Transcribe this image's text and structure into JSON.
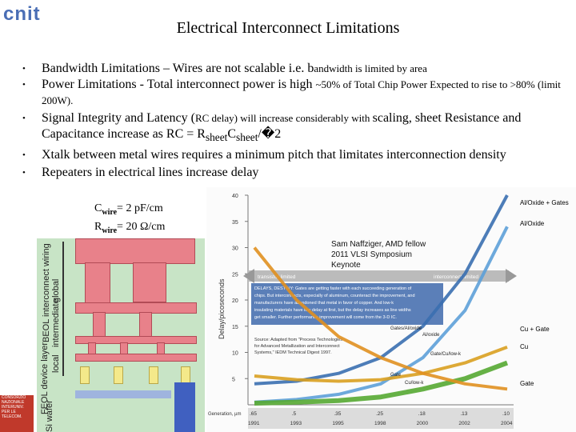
{
  "logo_text": "cnit",
  "title": "Electrical Interconnect Limitations",
  "bullets": [
    {
      "main": "Bandwidth Limitations – Wires are not scalable i.e. b",
      "small": "andwidth is limited by area"
    },
    {
      "main": "Power Limitations - Total interconnect power is high ",
      "small": "~50% of Total Chip Power Expected to rise to >80%  (limit 200W)."
    },
    {
      "main_a": "Signal Integrity and Latency (",
      "small": "RC delay) will increase considerably with ",
      "main_b": "scaling, sheet Resistance and Capacitance increase as RC = R",
      "sub1": "sheet",
      "mid": "C",
      "sub2": "sheet",
      "tail": "/�2"
    },
    {
      "main": "Xtalk between metal wires requires a minimum pitch that limitates interconnection density"
    },
    {
      "main": "Repeaters in electrical lines increase delay"
    }
  ],
  "cwire": {
    "c_prefix": "C",
    "c_sub": "wire",
    "c_val": "= 2 pF/cm",
    "r_prefix": "R",
    "r_sub": "wire",
    "r_val": "= 20 Ω/cm"
  },
  "xsec_labels": {
    "beol_wiring": "BEOL interconnect wiring",
    "global": "global",
    "intermediate": "intermediate",
    "local": "local",
    "feol": "FEOL device layer",
    "si": "Si wafer"
  },
  "corner_logo": [
    "CONSORZIO",
    "NAZIONALE",
    "INTERUNIV.",
    "PER LE",
    "TELECOM."
  ],
  "keynote": [
    "Sam Naffziger, AMD fellow",
    "2011 VLSI Symposium",
    "Keynote"
  ],
  "chart_data": {
    "type": "line",
    "ylabel": "Delay/picoseconds",
    "y_ticks": [
      "40",
      "35",
      "30",
      "25",
      "20",
      "15",
      "10",
      "5"
    ],
    "x_row_label": "Generation, µm",
    "x_ticks": [
      ".65",
      ".5",
      ".35",
      ".25",
      ".18",
      ".13",
      ".10"
    ],
    "year_row": [
      "1991",
      "1993",
      "1995",
      "1998",
      "2000",
      "2002",
      "2004"
    ],
    "ylim": [
      0,
      40
    ],
    "series": [
      {
        "name": "Al/Oxide + Gates",
        "values": [
          4,
          4.5,
          6,
          9,
          15,
          25,
          40
        ]
      },
      {
        "name": "Al/Oxide",
        "values": [
          0.5,
          1,
          2,
          4,
          9,
          18,
          34
        ]
      },
      {
        "name": "Cu + Gate",
        "values": [
          5.5,
          4.8,
          4.5,
          4.8,
          6,
          8,
          11
        ]
      },
      {
        "name": "Cu",
        "values": [
          0.3,
          0.5,
          0.8,
          1.5,
          3,
          5,
          8
        ]
      },
      {
        "name": "Gate",
        "values": [
          30,
          20,
          13,
          9,
          6,
          4,
          3
        ]
      }
    ],
    "curve_labels": [
      "Gates/Al/oxide",
      "Al/oxide",
      "Gate/Cu/low-k",
      "Cu/low-k",
      "Gate"
    ],
    "arrow_left": "transistor limited",
    "arrow_right": "interconnect limited",
    "box_text": [
      "DELAYS, DESTINY: Gates are getting faster with each succeeding generation of",
      "chips. But interconnects, especially of aluminum, counteract the improvement, and",
      "manufacturers have abandoned that metal in favor of copper. And low-k",
      "insulating materials have low delay at first, but the delay increases as line widths",
      "get smaller. Further performance improvement will come from the 3-D IC."
    ],
    "source": [
      "Source: Adapted from \"Process Technologies",
      "for Advanced Metallization and Interconnect",
      "Systems,\" IEDM Technical Digest 1997."
    ]
  }
}
